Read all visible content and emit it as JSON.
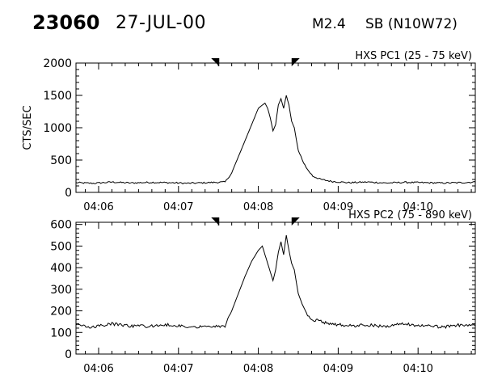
{
  "header": {
    "event_id": "23060",
    "date": "27-JUL-00",
    "flare_class": "M2.4",
    "location": "SB (N10W72)"
  },
  "chart_data": [
    {
      "type": "line",
      "title": "HXS PC1 (25 - 75 keV)",
      "ylabel": "CTS/SEC",
      "xlabel": "",
      "xlim": [
        "04:05:43",
        "04:10:43"
      ],
      "ylim": [
        0,
        2000
      ],
      "y_ticks": [
        "0",
        "500",
        "1000",
        "1500",
        "2000"
      ],
      "x_ticks": [
        "04:06",
        "04:07",
        "04:08",
        "04:09",
        "04:10"
      ],
      "markers_at": [
        "04:07:27",
        "04:08:25"
      ],
      "series": [
        {
          "x": [
            "04:05:43",
            "04:05:56",
            "04:06:10",
            "04:06:24",
            "04:06:39",
            "04:06:53",
            "04:07:07",
            "04:07:21",
            "04:07:35",
            "04:07:40",
            "04:07:45",
            "04:07:50",
            "04:07:55",
            "04:08:00",
            "04:08:03",
            "04:08:05",
            "04:08:07",
            "04:08:09",
            "04:08:11",
            "04:08:13",
            "04:08:15",
            "04:08:17",
            "04:08:19",
            "04:08:21",
            "04:08:23",
            "04:08:25",
            "04:08:27",
            "04:08:30",
            "04:08:33",
            "04:08:37",
            "04:08:41",
            "04:08:47",
            "04:08:55",
            "04:09:08",
            "04:09:22",
            "04:09:36",
            "04:09:50",
            "04:10:04",
            "04:10:18",
            "04:10:32",
            "04:10:43"
          ],
          "y": [
            150,
            140,
            160,
            145,
            155,
            150,
            140,
            150,
            160,
            300,
            550,
            800,
            1050,
            1300,
            1350,
            1380,
            1300,
            1150,
            950,
            1050,
            1350,
            1450,
            1300,
            1500,
            1350,
            1100,
            1000,
            650,
            500,
            350,
            250,
            200,
            170,
            150,
            160,
            145,
            155,
            150,
            145,
            150,
            160
          ]
        }
      ]
    },
    {
      "type": "line",
      "title": "HXS PC2 (75 - 890 keV)",
      "ylabel": "",
      "xlabel": "",
      "xlim": [
        "04:05:43",
        "04:10:43"
      ],
      "ylim": [
        0,
        610
      ],
      "y_ticks": [
        "0",
        "100",
        "200",
        "300",
        "400",
        "500",
        "600"
      ],
      "x_ticks": [
        "04:06",
        "04:07",
        "04:08",
        "04:09",
        "04:10"
      ],
      "markers_at": [
        "04:07:27",
        "04:08:25"
      ],
      "series": [
        {
          "x": [
            "04:05:43",
            "04:05:56",
            "04:06:10",
            "04:06:24",
            "04:06:39",
            "04:06:53",
            "04:07:07",
            "04:07:21",
            "04:07:35",
            "04:07:40",
            "04:07:45",
            "04:07:50",
            "04:07:55",
            "04:08:00",
            "04:08:03",
            "04:08:05",
            "04:08:07",
            "04:08:09",
            "04:08:11",
            "04:08:13",
            "04:08:15",
            "04:08:17",
            "04:08:19",
            "04:08:21",
            "04:08:23",
            "04:08:25",
            "04:08:27",
            "04:08:30",
            "04:08:33",
            "04:08:37",
            "04:08:41",
            "04:08:47",
            "04:08:55",
            "04:09:08",
            "04:09:22",
            "04:09:36",
            "04:09:50",
            "04:10:04",
            "04:10:18",
            "04:10:32",
            "04:10:43"
          ],
          "y": [
            135,
            125,
            140,
            130,
            128,
            135,
            125,
            130,
            130,
            200,
            280,
            360,
            430,
            480,
            500,
            460,
            420,
            380,
            340,
            390,
            470,
            520,
            460,
            550,
            480,
            420,
            390,
            280,
            230,
            180,
            160,
            150,
            140,
            130,
            135,
            128,
            140,
            130,
            125,
            135,
            130
          ]
        }
      ]
    }
  ]
}
